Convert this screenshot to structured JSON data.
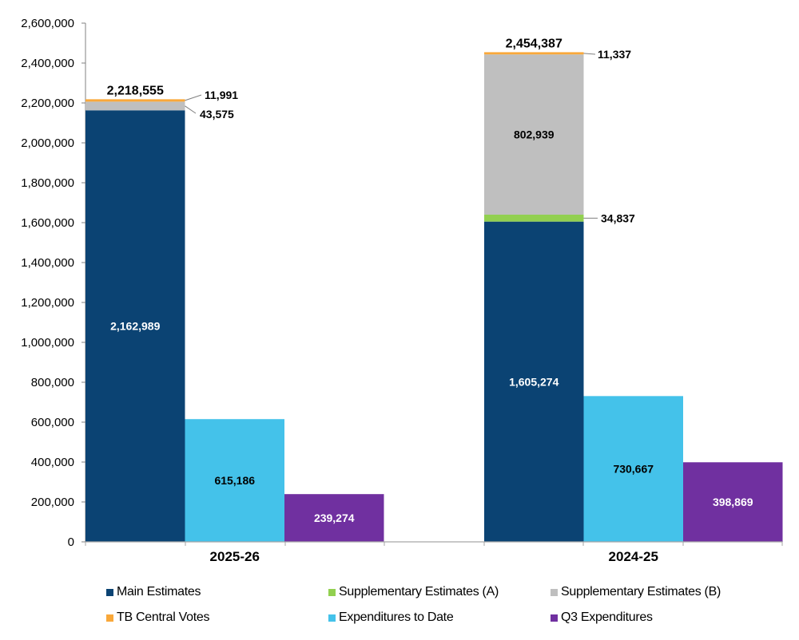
{
  "chart_data": {
    "type": "bar",
    "subtype": "stacked-and-clustered",
    "title": "",
    "xlabel": "",
    "ylabel": "",
    "ylim": [
      0,
      2600000
    ],
    "yticks": [
      0,
      200000,
      400000,
      600000,
      800000,
      1000000,
      1200000,
      1400000,
      1600000,
      1800000,
      2000000,
      2200000,
      2400000,
      2600000
    ],
    "ytick_labels": [
      "0",
      "200,000",
      "400,000",
      "600,000",
      "800,000",
      "1,000,000",
      "1,200,000",
      "1,400,000",
      "1,600,000",
      "1,800,000",
      "2,000,000",
      "2,200,000",
      "2,400,000",
      "2,600,000"
    ],
    "grid": false,
    "categories": [
      "2025-26",
      "2024-25"
    ],
    "series": [
      {
        "name": "Main Estimates",
        "color": "#0b4373",
        "stack": "authorities",
        "values": [
          2162989,
          1605274
        ],
        "labels": [
          "2,162,989",
          "1,605,274"
        ],
        "label_color": "#ffffff"
      },
      {
        "name": "Supplementary Estimates (A)",
        "color": "#92d050",
        "stack": "authorities",
        "values": [
          0,
          34837
        ],
        "labels": [
          "",
          "34,837"
        ],
        "label_color": "#000000"
      },
      {
        "name": "Supplementary Estimates (B)",
        "color": "#bfbfbf",
        "stack": "authorities",
        "values": [
          43575,
          802939
        ],
        "labels": [
          "43,575",
          "802,939"
        ],
        "label_color": "#000000"
      },
      {
        "name": "TB Central Votes",
        "color": "#f9a83a",
        "stack": "authorities",
        "values": [
          11991,
          11337
        ],
        "labels": [
          "11,991",
          "11,337"
        ],
        "label_color": "#000000"
      },
      {
        "name": "Expenditures to Date",
        "color": "#44c2ea",
        "stack": "spent",
        "values": [
          615186,
          730667
        ],
        "labels": [
          "615,186",
          "730,667"
        ],
        "label_color": "#000000"
      },
      {
        "name": "Q3 Expenditures",
        "color": "#7030a0",
        "stack": "q3",
        "values": [
          239274,
          398869
        ],
        "labels": [
          "239,274",
          "398,869"
        ],
        "label_color": "#ffffff"
      }
    ],
    "totals": [
      {
        "category": "2025-26",
        "value": 2218555,
        "label": "2,218,555"
      },
      {
        "category": "2024-25",
        "value": 2454387,
        "label": "2,454,387"
      }
    ],
    "legend": {
      "placement": "bottom",
      "items": [
        {
          "label": "Main Estimates",
          "color": "#0b4373"
        },
        {
          "label": "Supplementary Estimates (A)",
          "color": "#92d050"
        },
        {
          "label": "Supplementary Estimates (B)",
          "color": "#bfbfbf"
        },
        {
          "label": "TB Central Votes",
          "color": "#f9a83a"
        },
        {
          "label": "Expenditures to Date",
          "color": "#44c2ea"
        },
        {
          "label": "Q3 Expenditures",
          "color": "#7030a0"
        }
      ]
    }
  }
}
